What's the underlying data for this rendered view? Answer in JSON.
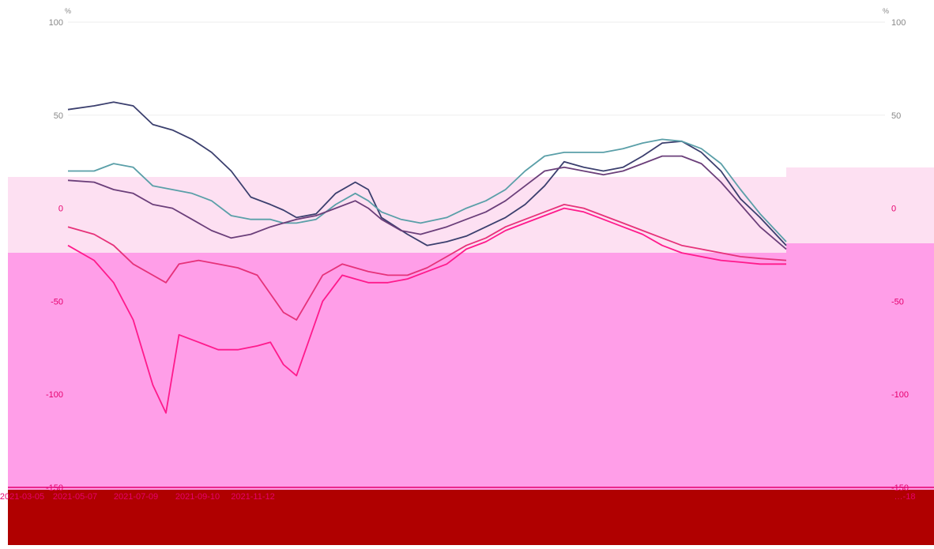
{
  "chart_data": {
    "type": "line",
    "unit_left": "%",
    "unit_right": "%",
    "y_ticks_left": [
      "100",
      "50",
      "0",
      "-50",
      "-100",
      "-150"
    ],
    "y_ticks_right": [
      "100",
      "50",
      "0",
      "-50",
      "-100",
      "-150"
    ],
    "ylim": [
      -150,
      100
    ],
    "x_tick_labels": [
      "2021-03-05",
      "2021-05-07",
      "2021-07-09",
      "2021-09-10",
      "2021-11-12",
      "…-18"
    ],
    "grid": true,
    "overlay_colors": {
      "light_band": "#fde0f2",
      "pink_band": "#ff9ee8",
      "dark_band": "#b00000"
    },
    "series": [
      {
        "color": "#3b3f6e",
        "values": [
          [
            0,
            53
          ],
          [
            8,
            55
          ],
          [
            14,
            57
          ],
          [
            20,
            55
          ],
          [
            26,
            45
          ],
          [
            32,
            42
          ],
          [
            38,
            37
          ],
          [
            44,
            30
          ],
          [
            50,
            20
          ],
          [
            56,
            6
          ],
          [
            62,
            2
          ],
          [
            66,
            -1
          ],
          [
            70,
            -5
          ],
          [
            76,
            -3
          ],
          [
            82,
            8
          ],
          [
            88,
            14
          ],
          [
            92,
            10
          ],
          [
            96,
            -5
          ],
          [
            104,
            -14
          ],
          [
            110,
            -20
          ],
          [
            116,
            -18
          ],
          [
            122,
            -15
          ],
          [
            128,
            -10
          ],
          [
            134,
            -5
          ],
          [
            140,
            2
          ],
          [
            146,
            12
          ],
          [
            152,
            25
          ],
          [
            158,
            22
          ],
          [
            164,
            20
          ],
          [
            170,
            22
          ],
          [
            176,
            28
          ],
          [
            182,
            35
          ],
          [
            188,
            36
          ],
          [
            194,
            30
          ],
          [
            200,
            20
          ],
          [
            206,
            5
          ],
          [
            212,
            -5
          ],
          [
            220,
            -20
          ]
        ]
      },
      {
        "color": "#5a9fa8",
        "values": [
          [
            0,
            20
          ],
          [
            8,
            20
          ],
          [
            14,
            24
          ],
          [
            20,
            22
          ],
          [
            26,
            12
          ],
          [
            32,
            10
          ],
          [
            38,
            8
          ],
          [
            44,
            4
          ],
          [
            50,
            -4
          ],
          [
            56,
            -6
          ],
          [
            62,
            -6
          ],
          [
            66,
            -8
          ],
          [
            70,
            -8
          ],
          [
            76,
            -6
          ],
          [
            82,
            2
          ],
          [
            88,
            8
          ],
          [
            92,
            4
          ],
          [
            96,
            -2
          ],
          [
            102,
            -6
          ],
          [
            108,
            -8
          ],
          [
            116,
            -5
          ],
          [
            122,
            0
          ],
          [
            128,
            4
          ],
          [
            134,
            10
          ],
          [
            140,
            20
          ],
          [
            146,
            28
          ],
          [
            152,
            30
          ],
          [
            158,
            30
          ],
          [
            164,
            30
          ],
          [
            170,
            32
          ],
          [
            176,
            35
          ],
          [
            182,
            37
          ],
          [
            188,
            36
          ],
          [
            194,
            32
          ],
          [
            200,
            24
          ],
          [
            206,
            10
          ],
          [
            212,
            -3
          ],
          [
            220,
            -18
          ]
        ]
      },
      {
        "color": "#6b3f7a",
        "values": [
          [
            0,
            15
          ],
          [
            8,
            14
          ],
          [
            14,
            10
          ],
          [
            20,
            8
          ],
          [
            26,
            2
          ],
          [
            32,
            0
          ],
          [
            38,
            -6
          ],
          [
            44,
            -12
          ],
          [
            50,
            -16
          ],
          [
            56,
            -14
          ],
          [
            62,
            -10
          ],
          [
            66,
            -8
          ],
          [
            70,
            -6
          ],
          [
            76,
            -4
          ],
          [
            82,
            0
          ],
          [
            88,
            4
          ],
          [
            92,
            0
          ],
          [
            96,
            -6
          ],
          [
            102,
            -12
          ],
          [
            108,
            -14
          ],
          [
            116,
            -10
          ],
          [
            122,
            -6
          ],
          [
            128,
            -2
          ],
          [
            134,
            4
          ],
          [
            140,
            12
          ],
          [
            146,
            20
          ],
          [
            152,
            22
          ],
          [
            158,
            20
          ],
          [
            164,
            18
          ],
          [
            170,
            20
          ],
          [
            176,
            24
          ],
          [
            182,
            28
          ],
          [
            188,
            28
          ],
          [
            194,
            24
          ],
          [
            200,
            14
          ],
          [
            206,
            2
          ],
          [
            212,
            -10
          ],
          [
            220,
            -22
          ]
        ]
      },
      {
        "color": "#ff1a8c",
        "values": [
          [
            0,
            -20
          ],
          [
            8,
            -28
          ],
          [
            14,
            -40
          ],
          [
            20,
            -60
          ],
          [
            26,
            -95
          ],
          [
            30,
            -110
          ],
          [
            34,
            -68
          ],
          [
            40,
            -72
          ],
          [
            46,
            -76
          ],
          [
            52,
            -76
          ],
          [
            58,
            -74
          ],
          [
            62,
            -72
          ],
          [
            66,
            -84
          ],
          [
            70,
            -90
          ],
          [
            74,
            -70
          ],
          [
            78,
            -50
          ],
          [
            84,
            -36
          ],
          [
            88,
            -38
          ],
          [
            92,
            -40
          ],
          [
            98,
            -40
          ],
          [
            104,
            -38
          ],
          [
            110,
            -34
          ],
          [
            116,
            -30
          ],
          [
            122,
            -22
          ],
          [
            128,
            -18
          ],
          [
            134,
            -12
          ],
          [
            140,
            -8
          ],
          [
            146,
            -4
          ],
          [
            152,
            0
          ],
          [
            158,
            -2
          ],
          [
            164,
            -6
          ],
          [
            170,
            -10
          ],
          [
            176,
            -14
          ],
          [
            182,
            -20
          ],
          [
            188,
            -24
          ],
          [
            194,
            -26
          ],
          [
            200,
            -28
          ],
          [
            206,
            -29
          ],
          [
            212,
            -30
          ],
          [
            220,
            -30
          ]
        ]
      },
      {
        "color": "#e6327a",
        "values": [
          [
            0,
            -10
          ],
          [
            8,
            -14
          ],
          [
            14,
            -20
          ],
          [
            20,
            -30
          ],
          [
            26,
            -36
          ],
          [
            30,
            -40
          ],
          [
            34,
            -30
          ],
          [
            40,
            -28
          ],
          [
            46,
            -30
          ],
          [
            52,
            -32
          ],
          [
            58,
            -36
          ],
          [
            62,
            -46
          ],
          [
            66,
            -56
          ],
          [
            70,
            -60
          ],
          [
            74,
            -48
          ],
          [
            78,
            -36
          ],
          [
            84,
            -30
          ],
          [
            88,
            -32
          ],
          [
            92,
            -34
          ],
          [
            98,
            -36
          ],
          [
            104,
            -36
          ],
          [
            110,
            -32
          ],
          [
            116,
            -26
          ],
          [
            122,
            -20
          ],
          [
            128,
            -16
          ],
          [
            134,
            -10
          ],
          [
            140,
            -6
          ],
          [
            146,
            -2
          ],
          [
            152,
            2
          ],
          [
            158,
            0
          ],
          [
            164,
            -4
          ],
          [
            170,
            -8
          ],
          [
            176,
            -12
          ],
          [
            182,
            -16
          ],
          [
            188,
            -20
          ],
          [
            194,
            -22
          ],
          [
            200,
            -24
          ],
          [
            206,
            -26
          ],
          [
            212,
            -27
          ],
          [
            220,
            -28
          ]
        ]
      }
    ]
  }
}
